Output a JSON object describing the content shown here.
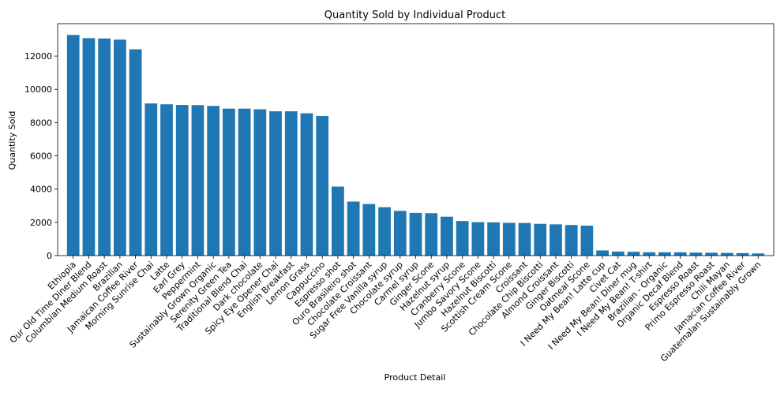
{
  "chart_data": {
    "type": "bar",
    "title": "Quantity Sold by Individual Product",
    "xlabel": "Product Detail",
    "ylabel": "Quantity Sold",
    "ylim": [
      0,
      13950
    ],
    "yticks": [
      0,
      2000,
      4000,
      6000,
      8000,
      10000,
      12000
    ],
    "grid": false,
    "legend": "none",
    "bar_color": "#1f77b4",
    "categories": [
      "Ethiopia",
      "Our Old Time Diner Blend",
      "Columbian Medium Roast",
      "Brazilian",
      "Jamaican Coffee River",
      "Morning Sunrise Chai",
      "Latte",
      "Earl Grey",
      "Peppermint",
      "Sustainably Grown Organic",
      "Serenity Green Tea",
      "Traditional Blend Chai",
      "Dark chocolate",
      "Spicy Eye Opener Chai",
      "English Breakfast",
      "Lemon Grass",
      "Cappuccino",
      "Espresso shot",
      "Ouro Brasileiro shot",
      "Chocolate Croissant",
      "Sugar Free Vanilla syrup",
      "Chocolate syrup",
      "Carmel syrup",
      "Ginger Scone",
      "Hazelnut syrup",
      "Cranberry Scone",
      "Jumbo Savory Scone",
      "Hazelnut Biscotti",
      "Scottish Cream Scone",
      "Croissant",
      "Chocolate Chip Biscotti",
      "Almond Croissant",
      "Ginger Biscotti",
      "Oatmeal Scone",
      "I Need My Bean! Latte cup",
      "Civet Cat",
      "I Need My Bean! Diner mug",
      "I Need My Bean! T-shirt",
      "Brazilian - Organic",
      "Organic Decaf Blend",
      "Espresso Roast",
      "Primo Espresso Roast",
      "Chili Mayan",
      "Jamacian Coffee River",
      "Guatemalan Sustainably Grown"
    ],
    "values": [
      13270,
      13080,
      13060,
      12990,
      12410,
      9150,
      9100,
      9060,
      9050,
      9000,
      8840,
      8840,
      8800,
      8680,
      8680,
      8560,
      8400,
      4150,
      3250,
      3100,
      2910,
      2690,
      2570,
      2550,
      2340,
      2080,
      2010,
      2000,
      1970,
      1960,
      1910,
      1880,
      1840,
      1800,
      310,
      240,
      230,
      200,
      200,
      200,
      180,
      170,
      160,
      150,
      130
    ]
  }
}
